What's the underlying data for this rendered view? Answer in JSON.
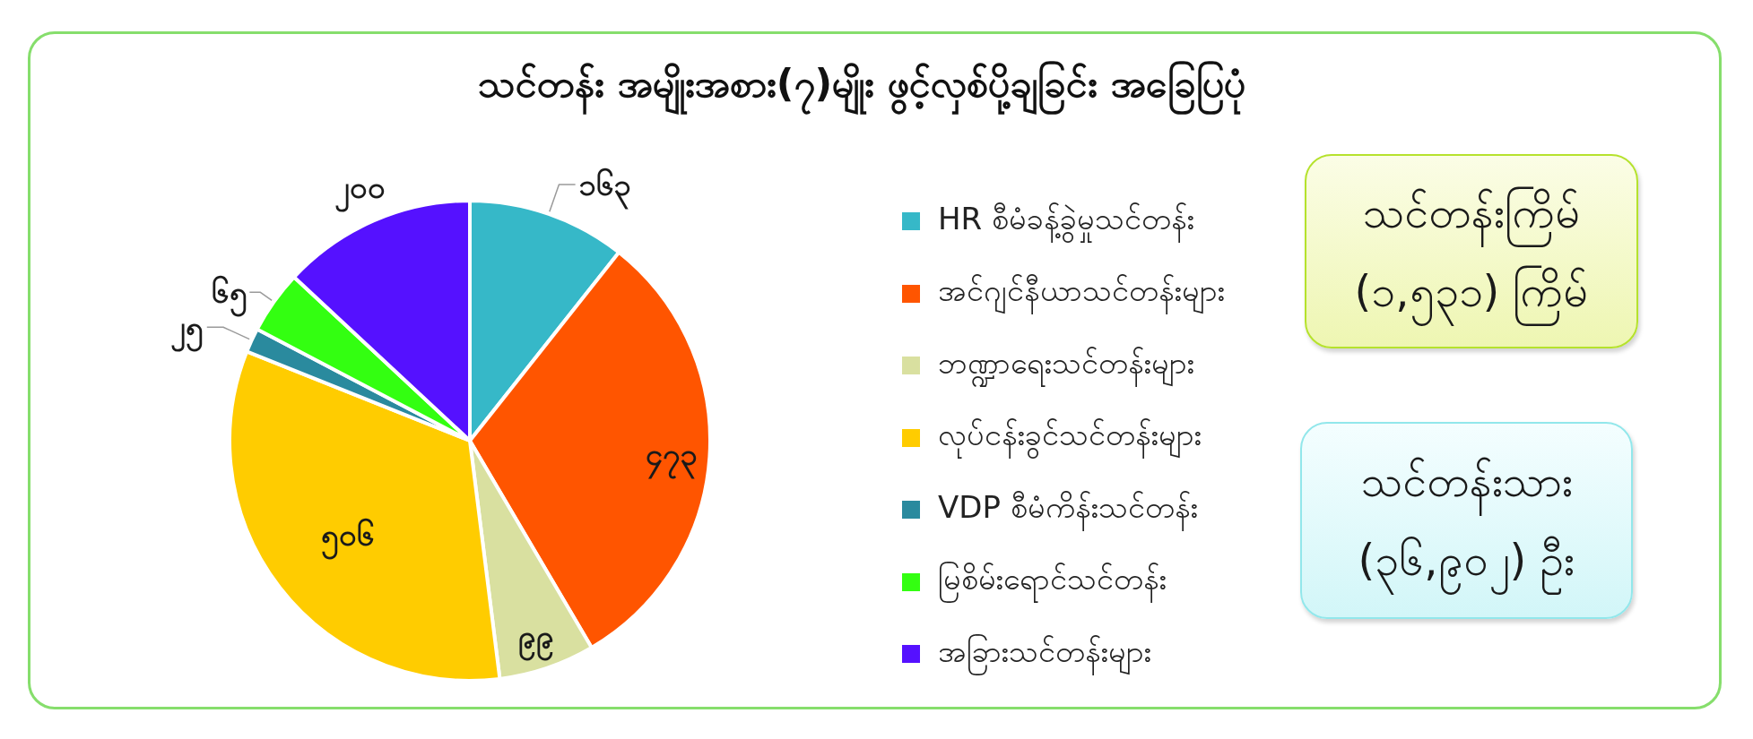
{
  "chart_data": [
    {
      "type": "pie",
      "title": "သင်တန်း အမျိုးအစား(၇)မျိုး ဖွင့်လှစ်ပို့ချခြင်း အခြေပြပုံ",
      "categories": [
        "HR စီမံခန့်ခွဲမှုသင်တန်း",
        "အင်ဂျင်နီယာသင်တန်းများ",
        "ဘဏ္ဍာရေးသင်တန်းများ",
        "လုပ်ငန်းခွင်သင်တန်းများ",
        "VDP စီမံကိန်းသင်တန်း",
        "မြစိမ်းရောင်သင်တန်း",
        "အခြားသင်တန်းများ"
      ],
      "values": [
        163,
        473,
        99,
        506,
        25,
        65,
        200
      ],
      "colors": [
        "#36b8c8",
        "#ff5500",
        "#d9e0a0",
        "#ffcc00",
        "#2a8a9e",
        "#33ff11",
        "#5511ff"
      ],
      "value_labels": [
        "၁၆၃",
        "၄၇၃",
        "၉၉",
        "၅၀၆",
        "၂၅",
        "၆၅",
        "၂၀၀"
      ],
      "legend": "right"
    },
    {
      "type": "other",
      "annotations": [
        "သင်တန်းကြိမ်",
        "(၁,၅၃၁) ကြိမ်"
      ]
    },
    {
      "type": "other",
      "annotations": [
        "သင်တန်းသား",
        "(၃၆,၉၀၂) ဦး"
      ]
    }
  ]
}
